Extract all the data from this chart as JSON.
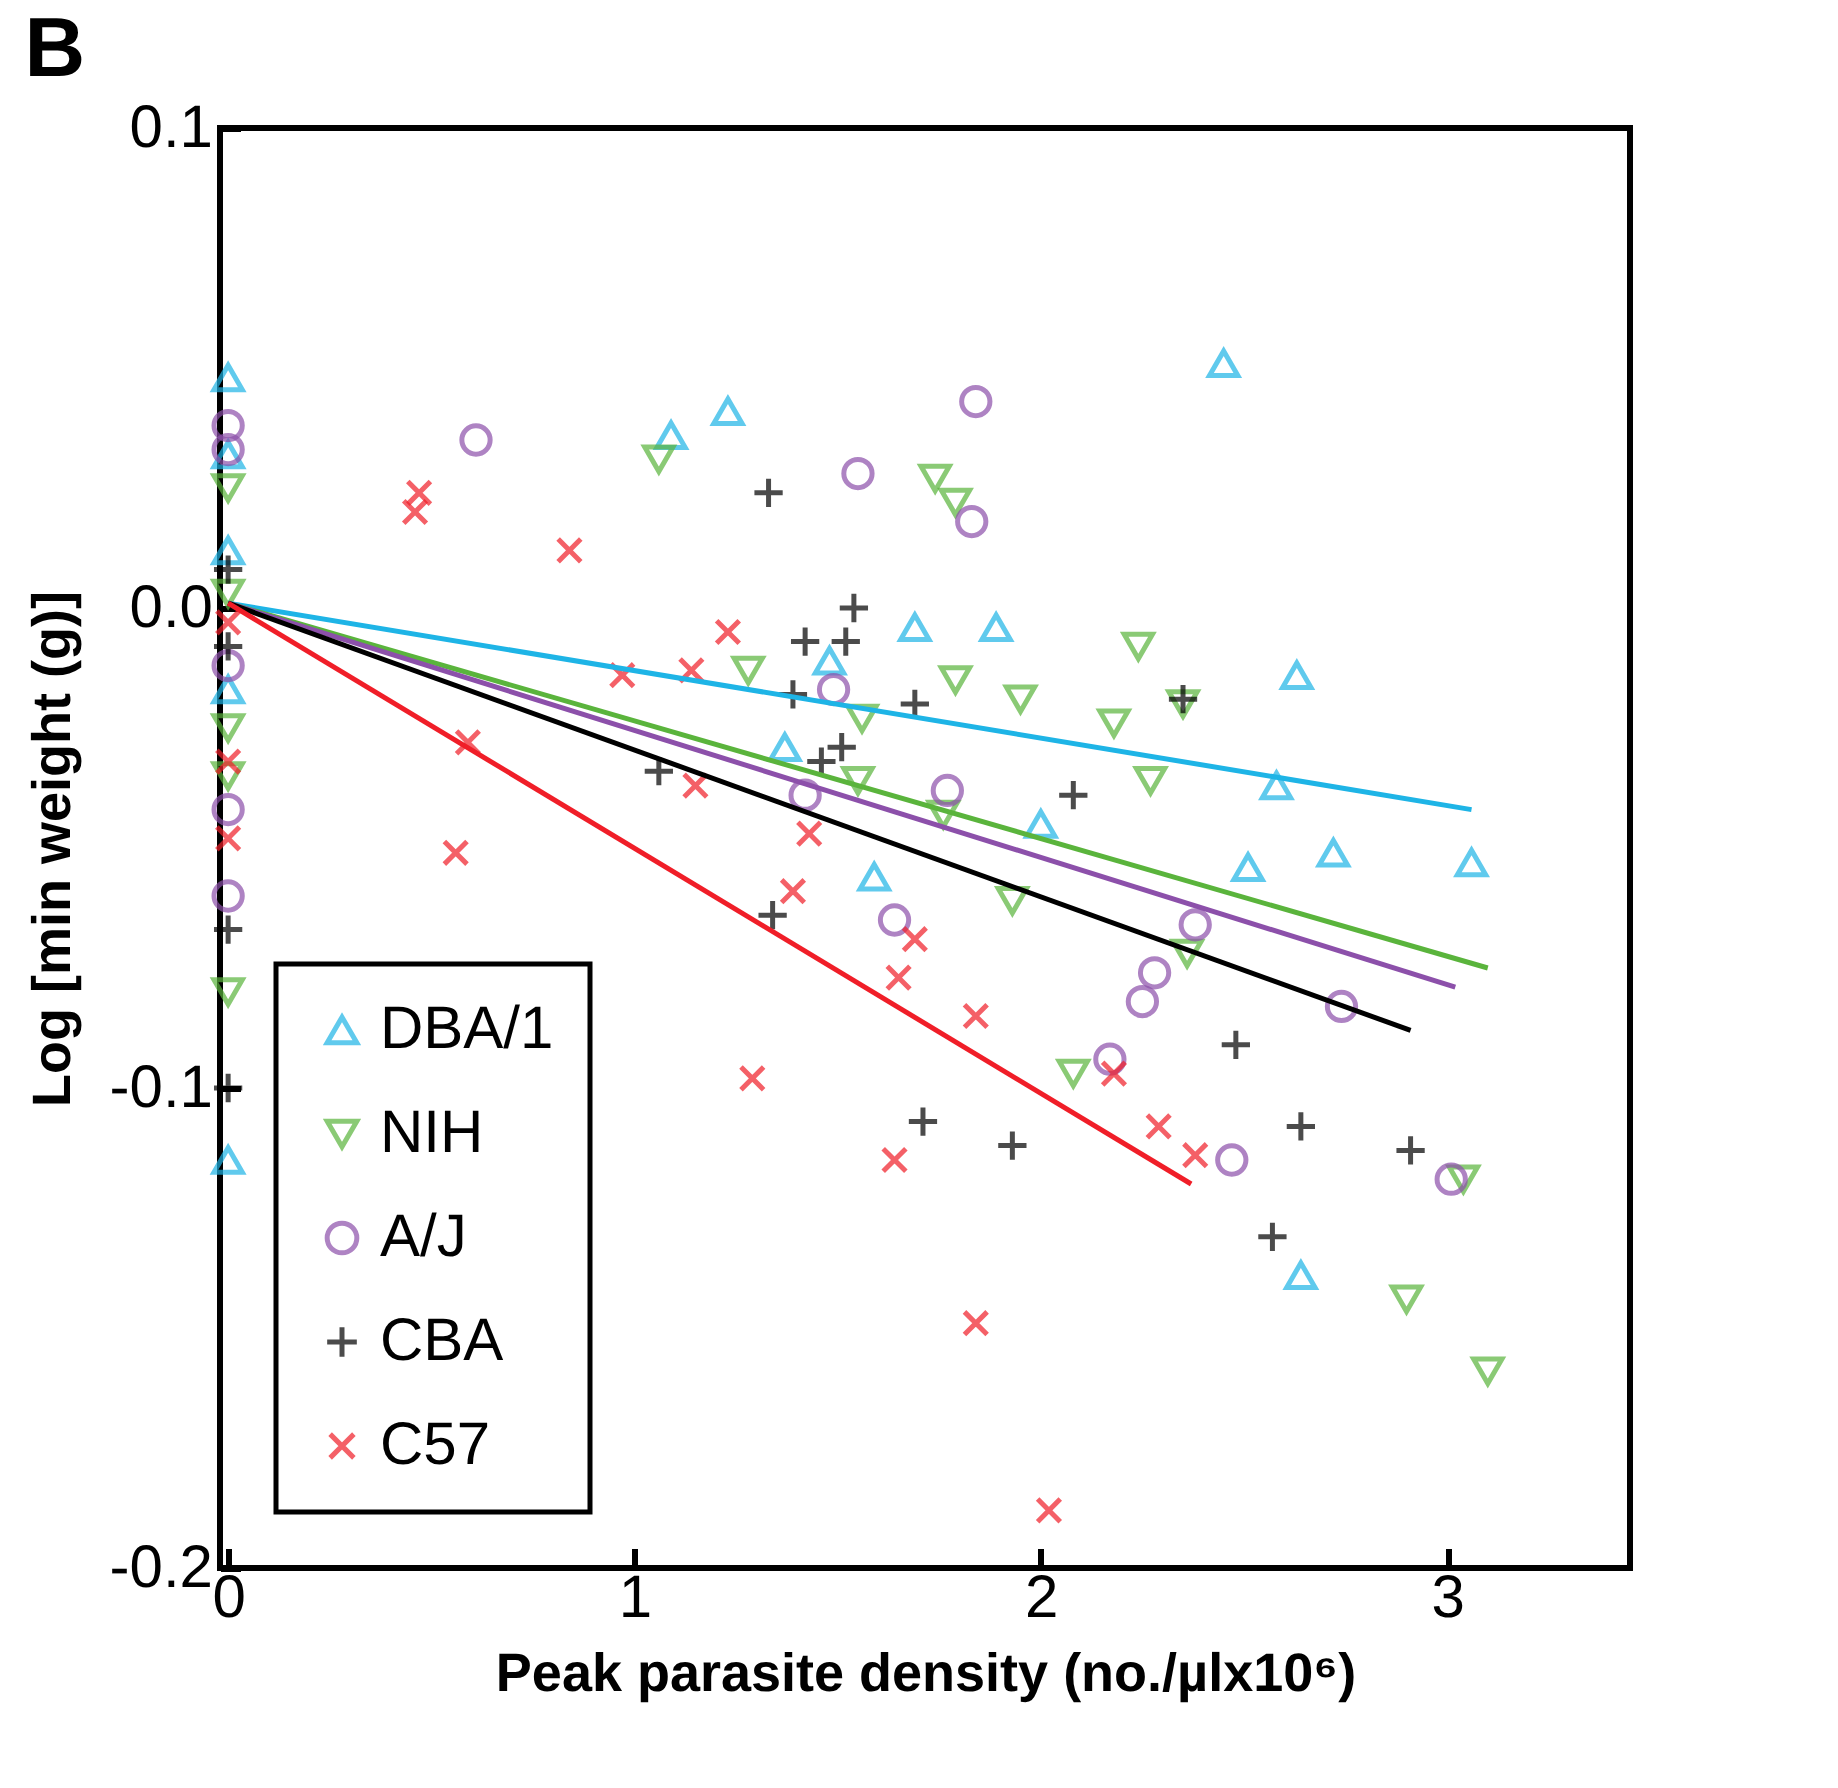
{
  "chart_data": {
    "type": "scatter",
    "annotations": [
      "B"
    ],
    "xlabel": "Peak parasite density (no./µlx10⁶)",
    "ylabel": "Log [min weight (g)]",
    "xlim": [
      -0.02,
      3.45
    ],
    "xticks": [
      0,
      1,
      2,
      3
    ],
    "ylim": [
      -0.2,
      0.1
    ],
    "yticks": [
      {
        "value": 0.1,
        "label": "0.1"
      },
      {
        "value": 0,
        "label": "0.0"
      },
      {
        "value": -0.1,
        "label": "-0.1"
      },
      {
        "value": -0.2,
        "label": "-0.2"
      }
    ],
    "grid": false,
    "legend": "bottom left",
    "series": [
      {
        "name": "DBA/1",
        "color": "#1eb4e6",
        "marker": "triangle",
        "x": [
          0,
          0,
          0,
          0,
          0,
          1.09,
          1.23,
          1.48,
          1.69,
          1.89,
          1.37,
          1.59,
          2.0,
          2.45,
          2.63,
          2.58,
          2.51,
          2.72,
          3.06,
          2.64
        ],
        "values": [
          0.048,
          0.032,
          0.012,
          -0.017,
          -0.115,
          0.036,
          0.041,
          -0.011,
          -0.004,
          -0.004,
          -0.029,
          -0.056,
          -0.045,
          0.051,
          -0.014,
          -0.037,
          -0.054,
          -0.051,
          -0.053,
          -0.139
        ]
      },
      {
        "name": "NIH",
        "color": "#5ab43c",
        "marker": "triangle-down",
        "x": [
          0,
          0,
          0,
          0,
          0,
          1.06,
          1.74,
          1.79,
          1.28,
          1.79,
          1.56,
          1.95,
          2.18,
          1.55,
          1.76,
          1.93,
          2.24,
          2.35,
          2.27,
          2.36,
          2.08,
          3.04,
          2.9,
          3.1
        ],
        "values": [
          0.025,
          0.003,
          -0.025,
          -0.035,
          -0.08,
          0.031,
          0.027,
          0.022,
          -0.013,
          -0.015,
          -0.023,
          -0.019,
          -0.024,
          -0.036,
          -0.043,
          -0.061,
          -0.008,
          -0.02,
          -0.036,
          -0.072,
          -0.097,
          -0.119,
          -0.144,
          -0.159
        ]
      },
      {
        "name": "A/J",
        "color": "#8c50aa",
        "marker": "circle",
        "x": [
          0,
          0,
          0,
          0,
          0,
          0.61,
          1.84,
          1.55,
          1.83,
          1.49,
          1.42,
          1.77,
          1.64,
          2.38,
          2.28,
          2.25,
          2.74,
          2.17,
          2.47,
          3.01
        ],
        "values": [
          0.038,
          0.033,
          -0.012,
          -0.042,
          -0.06,
          0.035,
          0.043,
          0.028,
          0.018,
          -0.017,
          -0.039,
          -0.038,
          -0.065,
          -0.066,
          -0.076,
          -0.082,
          -0.083,
          -0.094,
          -0.115,
          -0.119
        ]
      },
      {
        "name": "CBA",
        "color": "#000000",
        "marker": "cross",
        "x": [
          0,
          0,
          0,
          0,
          1.33,
          1.54,
          1.42,
          1.52,
          1.39,
          1.69,
          1.51,
          1.46,
          1.06,
          2.08,
          1.34,
          2.35,
          2.48,
          2.64,
          2.91,
          2.57,
          1.71,
          1.93
        ],
        "values": [
          0.008,
          -0.008,
          -0.067,
          -0.1,
          0.024,
          0.0,
          -0.007,
          -0.007,
          -0.018,
          -0.02,
          -0.029,
          -0.032,
          -0.034,
          -0.039,
          -0.064,
          -0.019,
          -0.091,
          -0.108,
          -0.113,
          -0.131,
          -0.107,
          -0.112
        ]
      },
      {
        "name": "C57",
        "color": "#f01e28",
        "marker": "x",
        "x": [
          0,
          0,
          0,
          0.47,
          0.46,
          0.84,
          0.97,
          1.14,
          0.59,
          0.56,
          1.15,
          1.23,
          1.43,
          1.39,
          1.69,
          1.65,
          1.84,
          1.29,
          1.64,
          1.84,
          2.02,
          2.18,
          2.29,
          2.38
        ],
        "values": [
          -0.003,
          -0.032,
          -0.048,
          0.024,
          0.02,
          0.012,
          -0.014,
          -0.013,
          -0.028,
          -0.051,
          -0.037,
          -0.005,
          -0.047,
          -0.059,
          -0.069,
          -0.077,
          -0.085,
          -0.098,
          -0.115,
          -0.149,
          -0.188,
          -0.097,
          -0.108,
          -0.114
        ]
      },
      {
        "type": "line",
        "color": "#1eb4e6",
        "x": [
          0,
          3.06
        ],
        "values": [
          0.001,
          -0.042
        ]
      },
      {
        "type": "line",
        "color": "#5ab43c",
        "x": [
          0,
          3.1
        ],
        "values": [
          0.001,
          -0.075
        ]
      },
      {
        "type": "line",
        "color": "#8c50aa",
        "x": [
          0,
          3.02
        ],
        "values": [
          0.001,
          -0.079
        ]
      },
      {
        "type": "line",
        "color": "#000000",
        "x": [
          0,
          2.91
        ],
        "values": [
          0.001,
          -0.088
        ]
      },
      {
        "type": "line",
        "color": "#f01e28",
        "x": [
          0,
          2.37
        ],
        "values": [
          0.001,
          -0.12
        ]
      }
    ]
  }
}
